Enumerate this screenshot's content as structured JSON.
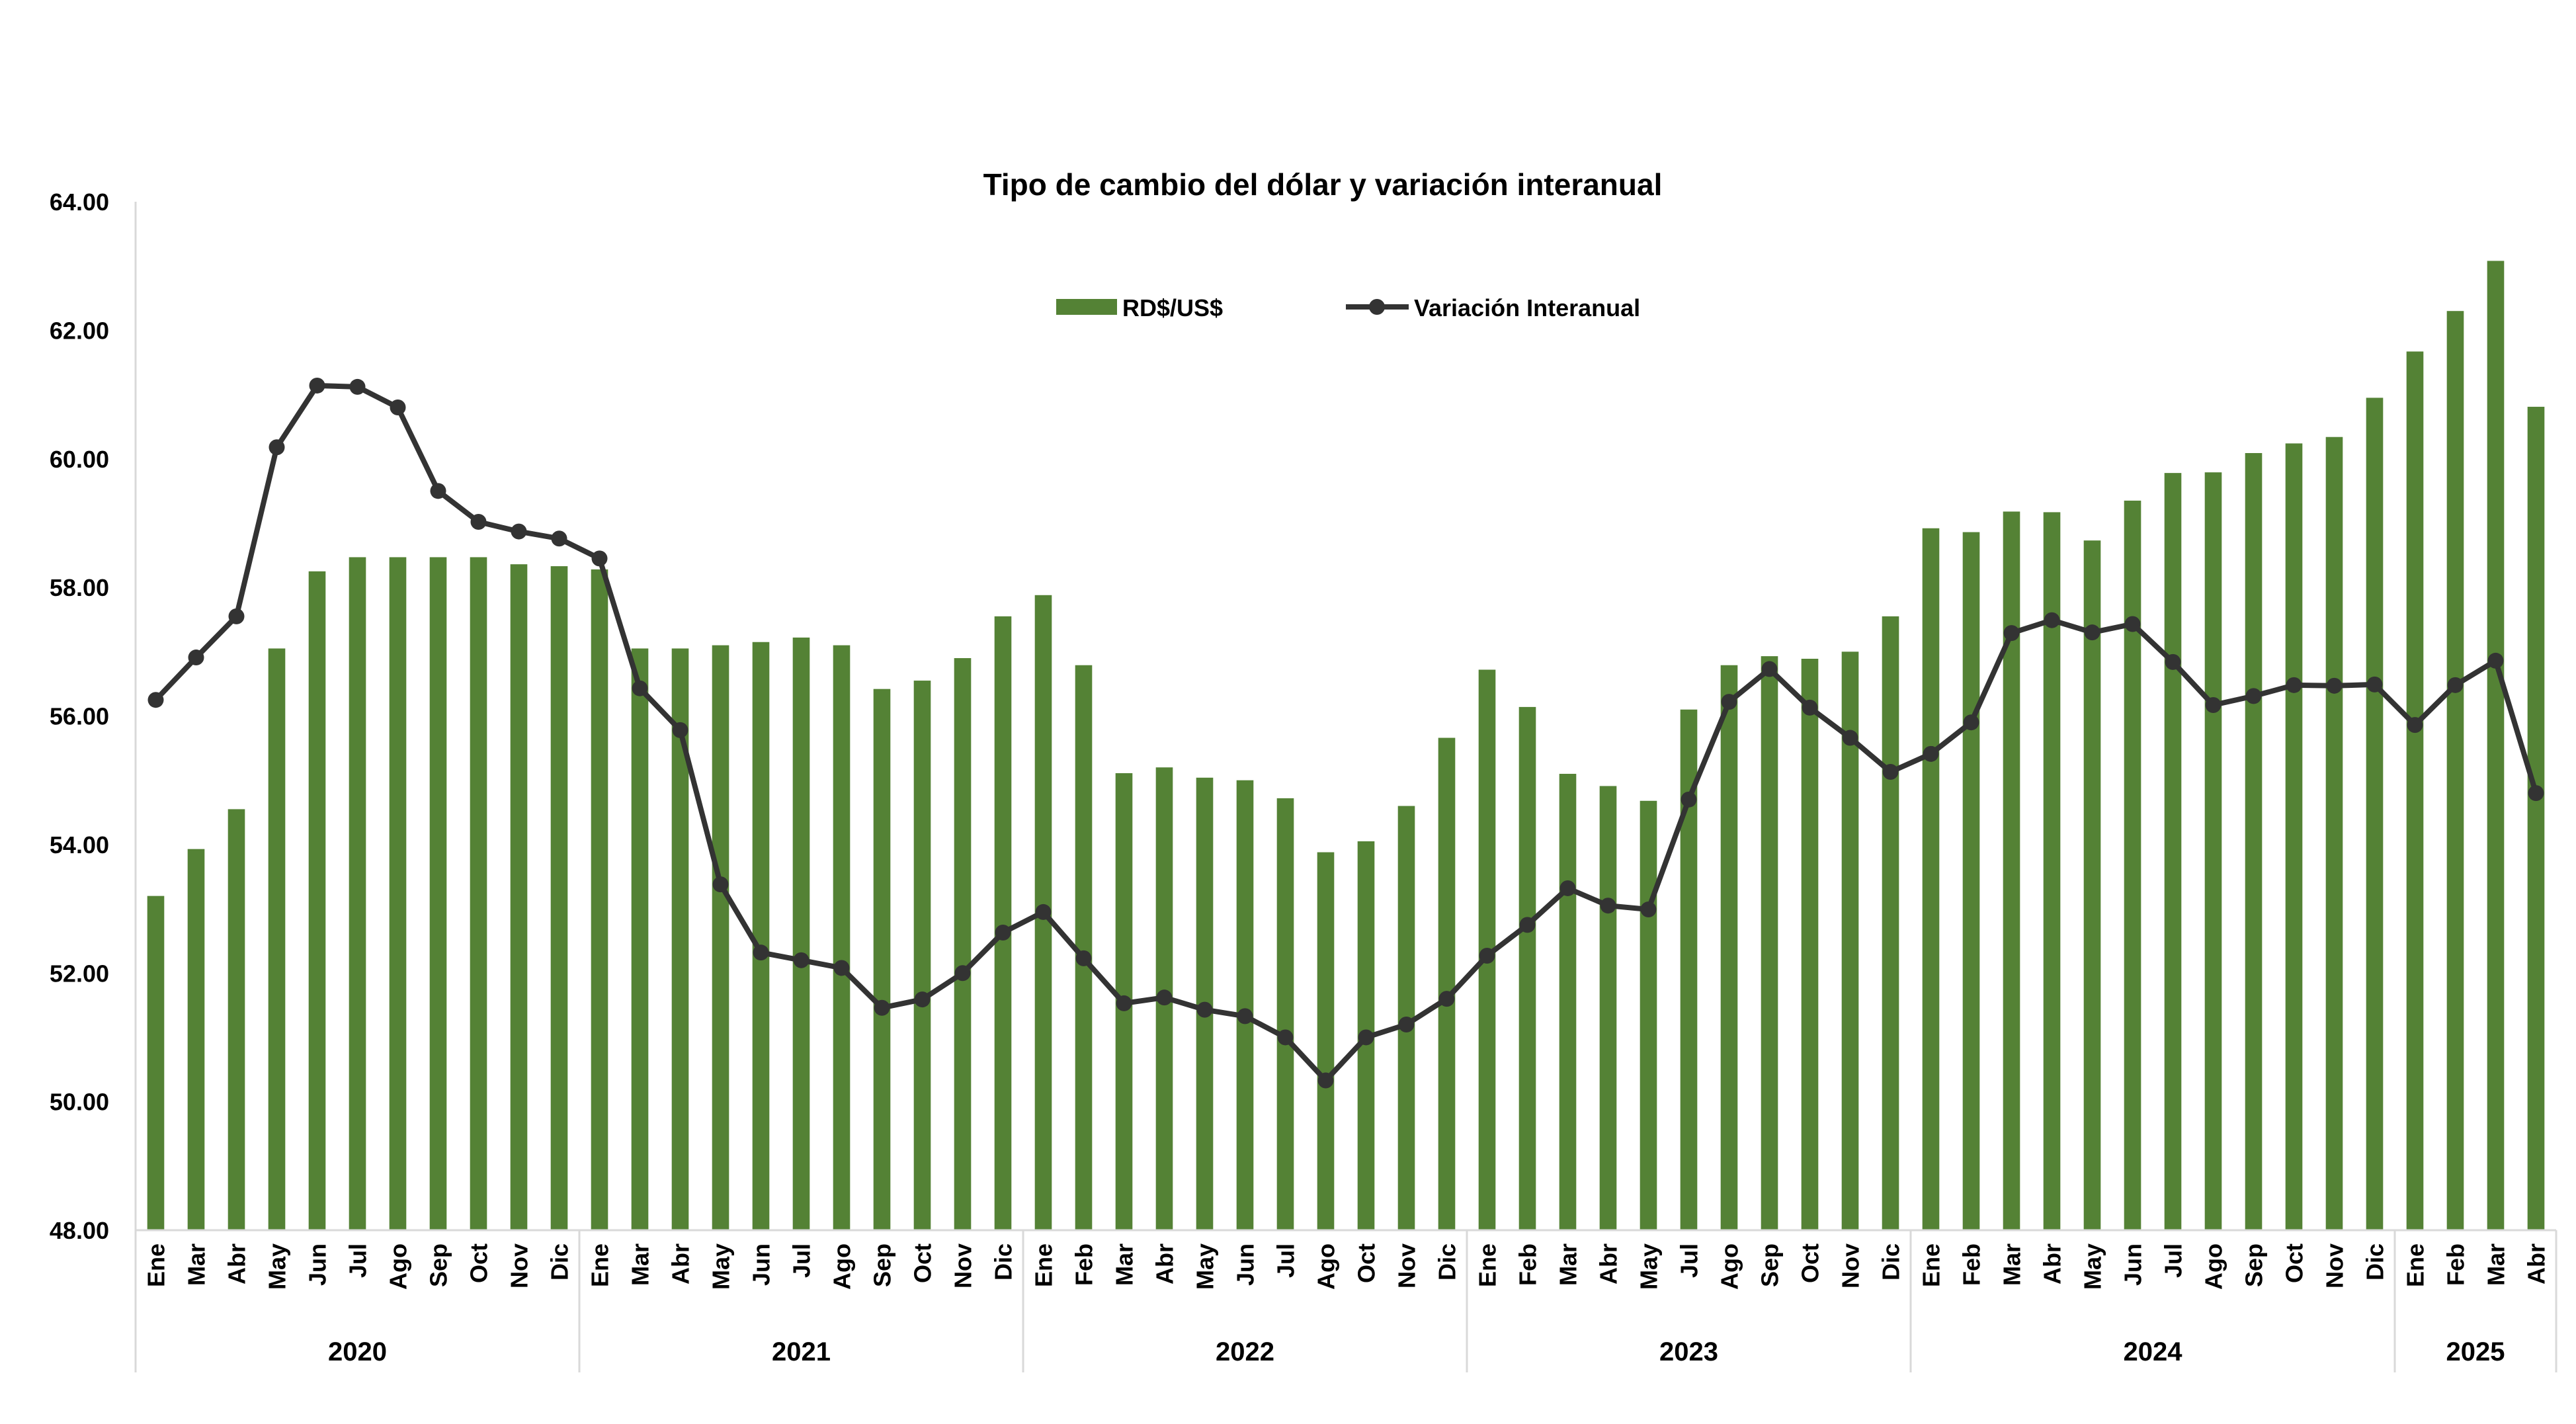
{
  "chart_data": {
    "type": "bar",
    "title": "Tipo de cambio del dólar y variación interanual",
    "xlabel": "",
    "ylabel": "",
    "ylim": [
      48,
      64
    ],
    "yticks": [
      "48.00",
      "50.00",
      "52.00",
      "54.00",
      "56.00",
      "58.00",
      "60.00",
      "62.00",
      "64.00"
    ],
    "grid": false,
    "legend_position": "top-center",
    "categories": [
      "Ene",
      "Mar",
      "Abr",
      "May",
      "Jun",
      "Jul",
      "Ago",
      "Sep",
      "Oct",
      "Nov",
      "Dic",
      "Ene",
      "Mar",
      "Abr",
      "May",
      "Jun",
      "Jul",
      "Ago",
      "Sep",
      "Oct",
      "Nov",
      "Dic",
      "Ene",
      "Feb",
      "Mar",
      "Abr",
      "May",
      "Jun",
      "Jul",
      "Ago",
      "Oct",
      "Nov",
      "Dic",
      "Ene",
      "Feb",
      "Mar",
      "Abr",
      "May",
      "Jul",
      "Ago",
      "Sep",
      "Oct",
      "Nov",
      "Dic",
      "Ene",
      "Feb",
      "Mar",
      "Abr",
      "May",
      "Jun",
      "Jul",
      "Ago",
      "Sep",
      "Oct",
      "Nov",
      "Dic",
      "Ene",
      "Feb",
      "Mar",
      "Abr"
    ],
    "year_groups": [
      {
        "label": "2020",
        "count": 11
      },
      {
        "label": "2021",
        "count": 11
      },
      {
        "label": "2022",
        "count": 11
      },
      {
        "label": "2023",
        "count": 11
      },
      {
        "label": "2024",
        "count": 12
      },
      {
        "label": "2025",
        "count": 4
      }
    ],
    "series": [
      {
        "name": "RD$/US$",
        "type": "bar",
        "color": "#548235",
        "values": [
          53.2,
          53.93,
          54.55,
          57.05,
          58.25,
          58.47,
          58.47,
          58.47,
          58.47,
          58.36,
          58.33,
          58.28,
          57.05,
          57.05,
          57.1,
          57.15,
          57.22,
          57.1,
          56.42,
          56.55,
          56.9,
          57.55,
          57.88,
          56.79,
          55.11,
          55.2,
          55.04,
          55.0,
          54.72,
          53.88,
          54.05,
          54.6,
          55.66,
          56.72,
          56.14,
          55.1,
          54.91,
          54.68,
          56.1,
          56.79,
          56.93,
          56.89,
          57.0,
          57.55,
          58.92,
          58.86,
          59.18,
          59.17,
          58.73,
          59.35,
          59.78,
          59.79,
          60.09,
          60.24,
          60.34,
          60.95,
          61.67,
          62.3,
          63.08,
          60.81
        ]
      },
      {
        "name": "Variación Interanual",
        "type": "line",
        "color": "#333333",
        "values": [
          56.25,
          56.91,
          57.55,
          60.18,
          61.14,
          61.12,
          60.8,
          59.5,
          59.02,
          58.87,
          58.76,
          58.45,
          56.43,
          55.78,
          53.38,
          52.32,
          52.2,
          52.08,
          51.46,
          51.59,
          52.0,
          52.63,
          52.95,
          52.23,
          51.53,
          51.62,
          51.43,
          51.33,
          51.0,
          50.33,
          51.0,
          51.2,
          51.6,
          52.27,
          52.75,
          53.32,
          53.05,
          52.99,
          54.7,
          56.22,
          56.73,
          56.13,
          55.66,
          55.13,
          55.41,
          55.9,
          57.29,
          57.49,
          57.3,
          57.43,
          56.84,
          56.17,
          56.31,
          56.48,
          56.47,
          56.49,
          55.86,
          56.48,
          56.86,
          54.8
        ]
      }
    ]
  }
}
